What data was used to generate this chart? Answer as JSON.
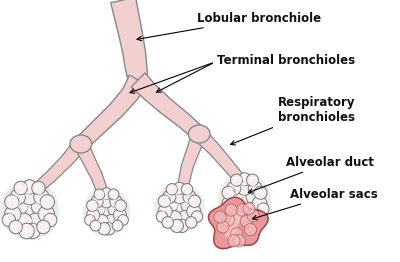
{
  "bg_color": "#ffffff",
  "tube_fill": "#f2d0cf",
  "tube_edge": "#888888",
  "alveoli_fill": "#f0ebe8",
  "alveoli_edge": "#777777",
  "alveoli_inner": "#ffffff",
  "alveolar_sac_fill": "#e8989a",
  "alveolar_sac_edge": "#994444",
  "alveolar_sac_inner": "#f5c0c0",
  "labels": {
    "lobular": "Lobular bronchiole",
    "terminal": "Terminal bronchioles",
    "respiratory": "Respiratory\nbronchioles",
    "alveolar_duct": "Alveolar duct",
    "alveolar_sacs": "Alveolar sacs"
  },
  "label_fontsize": 8.5,
  "label_color": "#111111",
  "figsize": [
    4.0,
    2.62
  ],
  "dpi": 100
}
